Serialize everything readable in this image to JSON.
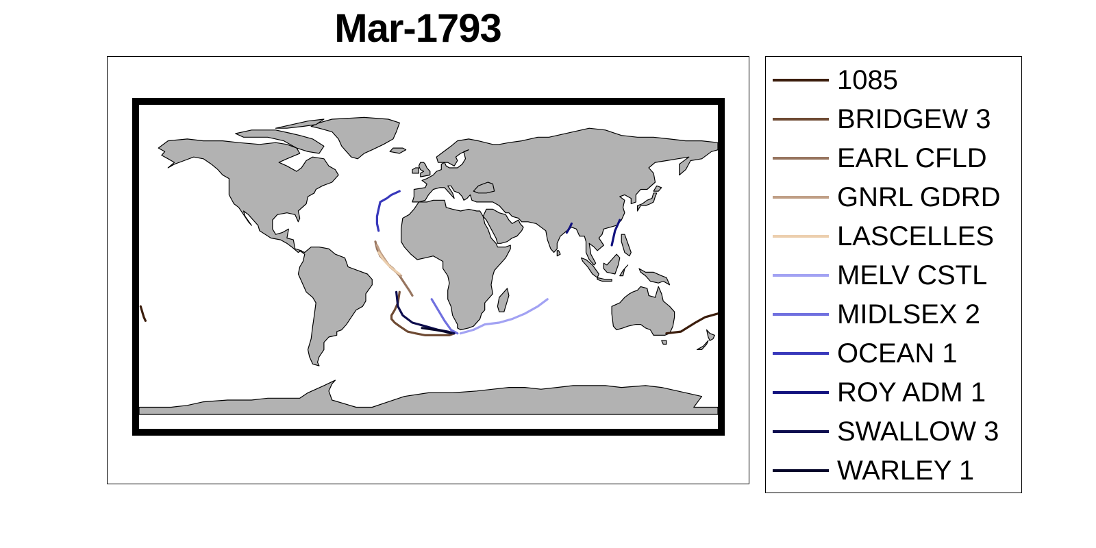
{
  "title": "Mar-1793",
  "map": {
    "land_color": "#b2b2b2",
    "coastline_color": "#000000",
    "frame_color": "#000000",
    "projection": "equirectangular world map"
  },
  "legend": {
    "placement": "right",
    "items": [
      {
        "label": "1085",
        "color": "#3b1d0c"
      },
      {
        "label": "BRIDGEW 3",
        "color": "#6e4a33"
      },
      {
        "label": "EARL CFLD",
        "color": "#97755f"
      },
      {
        "label": "GNRL GDRD",
        "color": "#c09f86"
      },
      {
        "label": "LASCELLES",
        "color": "#eccfae"
      },
      {
        "label": "MELV CSTL",
        "color": "#a2a2f3"
      },
      {
        "label": "MIDLSEX 2",
        "color": "#7070df"
      },
      {
        "label": "OCEAN 1",
        "color": "#3838bb"
      },
      {
        "label": "ROY ADM 1",
        "color": "#11117e"
      },
      {
        "label": "SWALLOW 3",
        "color": "#0d0d4e"
      },
      {
        "label": "WARLEY 1",
        "color": "#05052a"
      }
    ]
  },
  "chart_data": {
    "type": "map",
    "title": "Mar-1793",
    "xlim": [
      -180,
      180
    ],
    "ylim": [
      -90,
      90
    ],
    "series": [
      {
        "name": "1085",
        "color": "#3b1d0c",
        "segments": [
          [
            [
              -179,
              -22
            ],
            [
              -177,
              -28
            ],
            [
              -176,
              -30
            ]
          ],
          [
            [
              148,
              -37
            ],
            [
              157,
              -36
            ],
            [
              166,
              -31
            ],
            [
              172,
              -28
            ],
            [
              180,
              -26
            ]
          ]
        ]
      },
      {
        "name": "BRIDGEW 3",
        "color": "#6e4a33",
        "segments": [
          [
            [
              -18,
              -14
            ],
            [
              -19,
              -20
            ],
            [
              -21,
              -24
            ],
            [
              -23,
              -27
            ],
            [
              -23,
              -29
            ],
            [
              -21,
              -31
            ],
            [
              -18,
              -33
            ],
            [
              -13,
              -36
            ],
            [
              -8,
              -37
            ],
            [
              -2,
              -38
            ],
            [
              7,
              -38
            ],
            [
              13,
              -38
            ],
            [
              16,
              -37
            ]
          ]
        ]
      },
      {
        "name": "EARL CFLD",
        "color": "#97755f",
        "segments": [
          [
            [
              -33,
              14
            ],
            [
              -32,
              10
            ],
            [
              -30,
              6
            ],
            [
              -26,
              2
            ],
            [
              -22,
              -1
            ],
            [
              -18,
              -5
            ],
            [
              -15,
              -9
            ],
            [
              -12,
              -13
            ],
            [
              -10,
              -16
            ]
          ]
        ]
      },
      {
        "name": "GNRL GDRD",
        "color": "#c09f86",
        "segments": [
          [
            [
              -32,
              12
            ],
            [
              -30,
              8
            ],
            [
              -27,
              4
            ],
            [
              -24,
              0
            ],
            [
              -20,
              -3
            ],
            [
              -17,
              -5
            ]
          ]
        ]
      },
      {
        "name": "LASCELLES",
        "color": "#eccfae",
        "segments": [
          [
            [
              -31,
              8
            ],
            [
              -28,
              4
            ],
            [
              -25,
              1
            ],
            [
              -21,
              -2
            ],
            [
              -18,
              -4
            ]
          ]
        ]
      },
      {
        "name": "MELV CSTL",
        "color": "#a2a2f3",
        "segments": [
          [
            [
              20,
              -37
            ],
            [
              28,
              -35
            ],
            [
              35,
              -32
            ],
            [
              44,
              -31
            ],
            [
              52,
              -29
            ],
            [
              60,
              -26
            ],
            [
              68,
              -22
            ],
            [
              74,
              -18
            ]
          ]
        ]
      },
      {
        "name": "MIDLSEX 2",
        "color": "#7070df",
        "segments": [
          [
            [
              2,
              -18
            ],
            [
              6,
              -24
            ],
            [
              10,
              -30
            ],
            [
              14,
              -35
            ],
            [
              18,
              -37
            ]
          ]
        ]
      },
      {
        "name": "OCEAN 1",
        "color": "#3838bb",
        "segments": [
          [
            [
              -18,
              42
            ],
            [
              -23,
              40
            ],
            [
              -26,
              38
            ],
            [
              -30,
              36
            ],
            [
              -31,
              32
            ],
            [
              -32,
              28
            ],
            [
              -32,
              24
            ],
            [
              -31,
              20
            ]
          ]
        ]
      },
      {
        "name": "ROY ADM 1",
        "color": "#11117e",
        "segments": [
          [
            [
              86,
              19
            ],
            [
              88,
              22
            ],
            [
              89,
              24
            ]
          ],
          [
            [
              114,
              12
            ],
            [
              115,
              16
            ],
            [
              116,
              20
            ],
            [
              118,
              24
            ],
            [
              119,
              26
            ]
          ]
        ]
      },
      {
        "name": "SWALLOW 3",
        "color": "#0d0d4e",
        "segments": [
          [
            [
              -20,
              -14
            ],
            [
              -19,
              -22
            ],
            [
              -16,
              -27
            ],
            [
              -10,
              -31
            ],
            [
              -2,
              -33
            ],
            [
              6,
              -35
            ],
            [
              12,
              -36
            ],
            [
              16,
              -37
            ]
          ]
        ]
      },
      {
        "name": "WARLEY 1",
        "color": "#05052a",
        "segments": [
          [
            [
              -4,
              -34
            ],
            [
              4,
              -35
            ],
            [
              10,
              -36
            ],
            [
              14,
              -37
            ]
          ]
        ]
      }
    ]
  }
}
